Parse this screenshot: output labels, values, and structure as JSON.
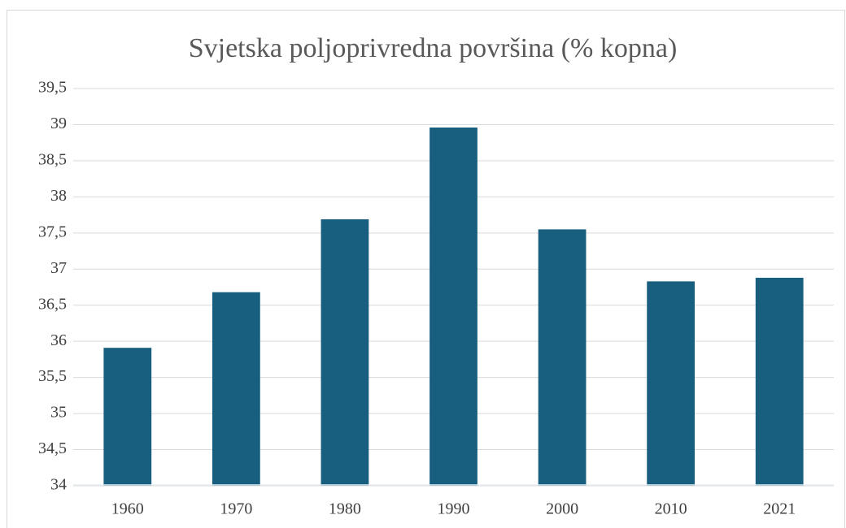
{
  "chart_data": {
    "type": "bar",
    "title": "Svjetska poljoprivredna površina (% kopna)",
    "categories": [
      "1960",
      "1970",
      "1980",
      "1990",
      "2000",
      "2010",
      "2021"
    ],
    "values": [
      35.91,
      36.68,
      37.69,
      38.96,
      37.55,
      36.83,
      36.88
    ],
    "color": "#175e7f",
    "ylim": [
      34,
      39.5
    ],
    "yticks": [
      34,
      {
        "value": 34.5,
        "label": "34,5"
      },
      35,
      {
        "value": 35.5,
        "label": "35,5"
      },
      36,
      {
        "value": 36.5,
        "label": "36,5"
      },
      37,
      {
        "value": 37.5,
        "label": "37,5"
      },
      38,
      {
        "value": 38.5,
        "label": "38,5"
      },
      39,
      {
        "value": 39.5,
        "label": "39,5"
      }
    ],
    "grid": true
  }
}
